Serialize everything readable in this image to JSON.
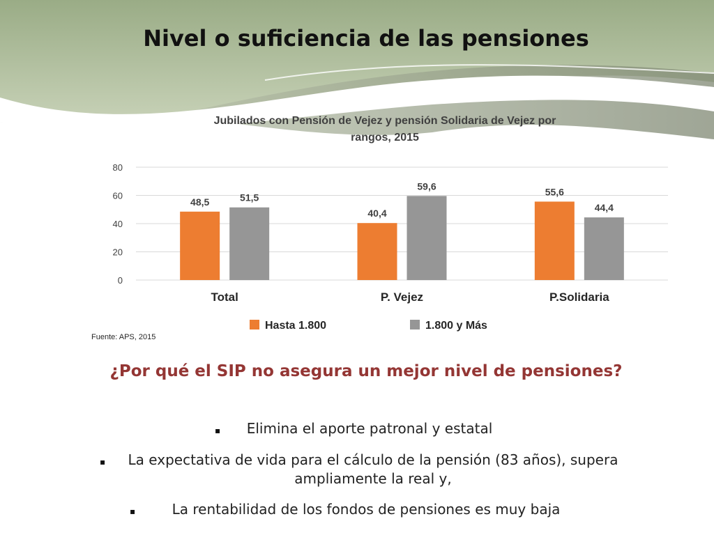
{
  "slide": {
    "title": "Nivel o suficiencia de las pensiones"
  },
  "chart_data": {
    "type": "bar",
    "title": "Jubilados con Pensión de Vejez y pensión Solidaria de Vejez por rangos, 2015",
    "title_lines": [
      "Jubilados con Pensión de Vejez y pensión Solidaria de Vejez por",
      "rangos, 2015"
    ],
    "categories": [
      "Total",
      "P. Vejez",
      "P.Solidaria"
    ],
    "series": [
      {
        "name": "Hasta 1.800",
        "values": [
          48.5,
          40.4,
          55.6
        ],
        "labels": [
          "48,5",
          "40,4",
          "55,6"
        ],
        "color": "#ed7d31"
      },
      {
        "name": "1.800 y Más",
        "values": [
          51.5,
          59.6,
          44.4
        ],
        "labels": [
          "51,5",
          "59,6",
          "44,4"
        ],
        "color": "#969696"
      }
    ],
    "yticks": [
      "0",
      "20",
      "40",
      "60",
      "80"
    ],
    "ylim": [
      0,
      80
    ],
    "grid": true,
    "legend_position": "bottom",
    "source": "Fuente: APS, 2015"
  },
  "content": {
    "question": "¿Por qué el SIP no asegura un mejor nivel de pensiones?",
    "bullet_marker": "▪",
    "bullets": [
      "Elimina el aporte patronal y estatal",
      "La expectativa de vida para el cálculo  de la pensión (83 años), supera ampliamente la real y,",
      "La rentabilidad de los fondos de pensiones  es muy baja"
    ]
  },
  "colors": {
    "header_green": "#9aac86",
    "header_green_light": "#c6d1b5",
    "question_red": "#943634"
  }
}
